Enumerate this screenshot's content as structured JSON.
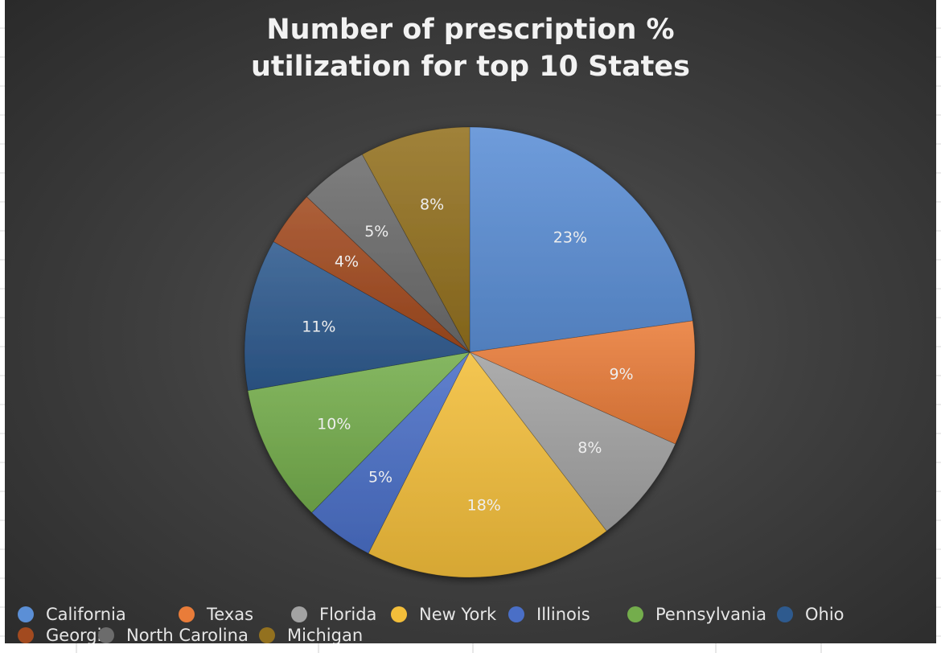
{
  "chart_data": {
    "type": "pie",
    "title_lines": [
      "Number of prescription %",
      "utilization for top 10 States"
    ],
    "categories": [
      "California",
      "Texas",
      "Florida",
      "New York",
      "Illinois",
      "Pennsylvania",
      "Ohio",
      "Georgia",
      "North Carolina",
      "Michigan"
    ],
    "values": [
      23,
      9,
      8,
      18,
      5,
      10,
      11,
      4,
      5,
      8
    ],
    "data_labels": [
      "23%",
      "9%",
      "8%",
      "18%",
      "5%",
      "10%",
      "11%",
      "4%",
      "5%",
      "8%"
    ],
    "colors": [
      "#5b8fd6",
      "#e97c39",
      "#a2a2a2",
      "#f3be3a",
      "#4a6fc7",
      "#74ad4c",
      "#2e5a8e",
      "#a24a1f",
      "#6c6c6c",
      "#93711f"
    ],
    "legend_position": "bottom",
    "start_angle": "12 o'clock",
    "direction": "clockwise"
  }
}
